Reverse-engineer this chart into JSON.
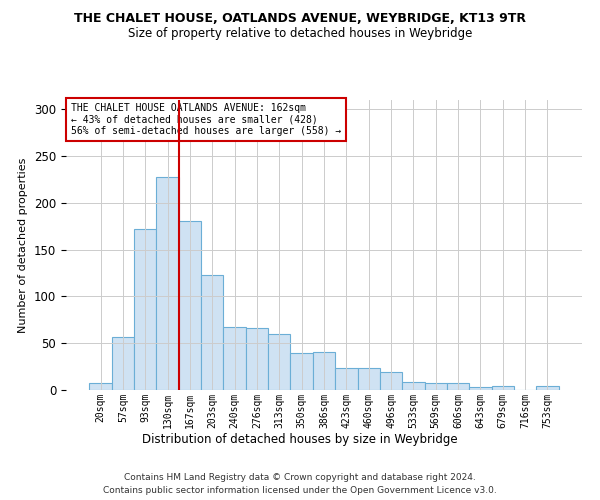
{
  "title": "THE CHALET HOUSE, OATLANDS AVENUE, WEYBRIDGE, KT13 9TR",
  "subtitle": "Size of property relative to detached houses in Weybridge",
  "xlabel": "Distribution of detached houses by size in Weybridge",
  "ylabel": "Number of detached properties",
  "bar_values": [
    7,
    57,
    172,
    228,
    181,
    123,
    67,
    66,
    60,
    40,
    41,
    24,
    23,
    19,
    9,
    8,
    8,
    3,
    4,
    0,
    4
  ],
  "bar_labels": [
    "20sqm",
    "57sqm",
    "93sqm",
    "130sqm",
    "167sqm",
    "203sqm",
    "240sqm",
    "276sqm",
    "313sqm",
    "350sqm",
    "386sqm",
    "423sqm",
    "460sqm",
    "496sqm",
    "533sqm",
    "569sqm",
    "606sqm",
    "643sqm",
    "679sqm",
    "716sqm",
    "753sqm"
  ],
  "bar_color": "#cfe2f3",
  "bar_edge_color": "#6baed6",
  "grid_color": "#cccccc",
  "vline_color": "#cc0000",
  "vline_pos": 3.5,
  "annotation_line1": "THE CHALET HOUSE OATLANDS AVENUE: 162sqm",
  "annotation_line2": "← 43% of detached houses are smaller (428)",
  "annotation_line3": "56% of semi-detached houses are larger (558) →",
  "annotation_box_color": "#cc0000",
  "footer_line1": "Contains HM Land Registry data © Crown copyright and database right 2024.",
  "footer_line2": "Contains public sector information licensed under the Open Government Licence v3.0.",
  "ylim": [
    0,
    310
  ],
  "background_color": "#ffffff"
}
